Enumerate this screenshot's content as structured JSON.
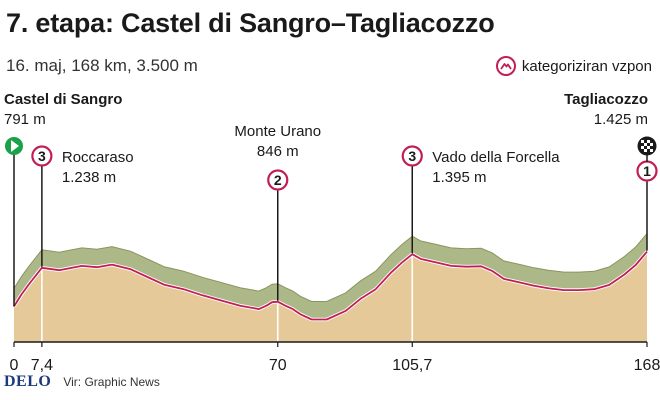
{
  "header": {
    "title": "7. etapa: Castel di Sangro–Tagliacozzo",
    "subtitle": "16. maj, 168 km, 3.500 m"
  },
  "legend": {
    "label": "kategoriziran vzpon",
    "color": "#c21e56"
  },
  "start": {
    "name": "Castel di Sangro",
    "elevation": "791 m"
  },
  "finish": {
    "name": "Tagliacozzo",
    "elevation": "1.425 m"
  },
  "climbs": [
    {
      "category": "3",
      "name": "Roccaraso",
      "elevation": "1.238 m",
      "km": 7.4
    },
    {
      "category": "2",
      "name": "Monte Urano",
      "elevation": "846 m",
      "km": 70
    },
    {
      "category": "3",
      "name": "Vado della Forcella",
      "elevation": "1.395 m",
      "km": 105.7
    },
    {
      "category": "1",
      "name": "",
      "elevation": "",
      "km": 168
    }
  ],
  "chart_data": {
    "type": "area",
    "title": "7. etapa: Castel di Sangro–Tagliacozzo",
    "xlabel": "",
    "ylabel": "",
    "xlim": [
      0,
      168
    ],
    "x_ticks": [
      0,
      7.4,
      70,
      105.7,
      168
    ],
    "x_tick_labels": [
      "0",
      "7,4",
      "70",
      "105,7",
      "168"
    ],
    "x": [
      0,
      2,
      4,
      7.4,
      12,
      18,
      22,
      26,
      31,
      36,
      40,
      45,
      50,
      55,
      60,
      65,
      67,
      68.5,
      70,
      72,
      74,
      76,
      79,
      83,
      88,
      92,
      96,
      100,
      103,
      105.7,
      108,
      112,
      116,
      120,
      124,
      127,
      130,
      134,
      138,
      142,
      146,
      150,
      154,
      158,
      162,
      165,
      168
    ],
    "y": [
      791,
      930,
      1050,
      1238,
      1210,
      1260,
      1245,
      1275,
      1220,
      1120,
      1040,
      990,
      920,
      860,
      800,
      760,
      800,
      840,
      846,
      800,
      760,
      700,
      640,
      640,
      740,
      880,
      990,
      1180,
      1300,
      1395,
      1340,
      1300,
      1260,
      1250,
      1255,
      1200,
      1110,
      1070,
      1030,
      1000,
      980,
      980,
      990,
      1040,
      1160,
      1270,
      1425
    ],
    "colors": {
      "terrain": "#e6c998",
      "road": "#c21e56",
      "shading": "#9fab73"
    }
  },
  "footer": {
    "logo": "DELO",
    "source": "Vir: Graphic News"
  }
}
